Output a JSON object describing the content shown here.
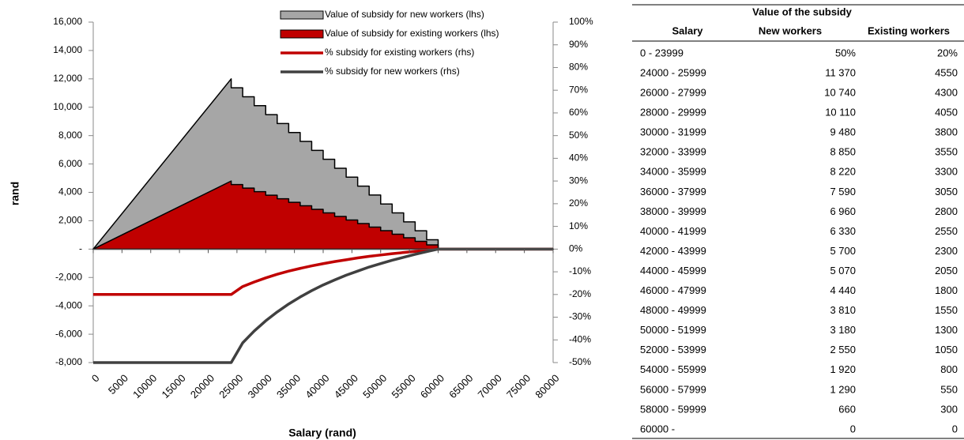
{
  "chart_data": {
    "type": "combo",
    "x_label": "Salary (rand)",
    "y_label": "rand",
    "x": [
      0,
      24000,
      24000,
      26000,
      26000,
      28000,
      28000,
      30000,
      30000,
      32000,
      32000,
      34000,
      34000,
      36000,
      36000,
      38000,
      38000,
      40000,
      40000,
      42000,
      42000,
      44000,
      44000,
      46000,
      46000,
      48000,
      48000,
      50000,
      50000,
      52000,
      52000,
      54000,
      54000,
      56000,
      56000,
      58000,
      58000,
      60000,
      60000,
      80000
    ],
    "xlim": [
      0,
      80000
    ],
    "xticks": [
      0,
      5000,
      10000,
      15000,
      20000,
      25000,
      30000,
      35000,
      40000,
      45000,
      50000,
      55000,
      60000,
      65000,
      70000,
      75000,
      80000
    ],
    "ylim": [
      -8000,
      16000
    ],
    "yticks": [
      {
        "value": 16000,
        "label": "16,000"
      },
      {
        "value": 14000,
        "label": "14,000"
      },
      {
        "value": 12000,
        "label": "12,000"
      },
      {
        "value": 10000,
        "label": "10,000"
      },
      {
        "value": 8000,
        "label": "8,000"
      },
      {
        "value": 6000,
        "label": "6,000"
      },
      {
        "value": 4000,
        "label": "4,000"
      },
      {
        "value": 2000,
        "label": "2,000"
      },
      {
        "value": 0,
        "label": "-"
      },
      {
        "value": -2000,
        "label": "-2,000"
      },
      {
        "value": -4000,
        "label": "-4,000"
      },
      {
        "value": -6000,
        "label": "-6,000"
      },
      {
        "value": -8000,
        "label": "-8,000"
      }
    ],
    "y2lim": [
      -50,
      100
    ],
    "y2ticks": [
      {
        "value": 100,
        "label": "100%"
      },
      {
        "value": 90,
        "label": "90%"
      },
      {
        "value": 80,
        "label": "80%"
      },
      {
        "value": 70,
        "label": "70%"
      },
      {
        "value": 60,
        "label": "60%"
      },
      {
        "value": 50,
        "label": "50%"
      },
      {
        "value": 40,
        "label": "40%"
      },
      {
        "value": 30,
        "label": "30%"
      },
      {
        "value": 20,
        "label": "20%"
      },
      {
        "value": 10,
        "label": "10%"
      },
      {
        "value": 0,
        "label": "0%"
      },
      {
        "value": -10,
        "label": "-10%"
      },
      {
        "value": -20,
        "label": "-20%"
      },
      {
        "value": -30,
        "label": "-30%"
      },
      {
        "value": -40,
        "label": "-40%"
      },
      {
        "value": -50,
        "label": "-50%"
      }
    ],
    "series": [
      {
        "name": "Value of subsidy for new workers (lhs)",
        "type": "area",
        "color": "#a6a6a6",
        "values": [
          0,
          12000,
          11370,
          11370,
          10740,
          10740,
          10110,
          10110,
          9480,
          9480,
          8850,
          8850,
          8220,
          8220,
          7590,
          7590,
          6960,
          6960,
          6330,
          6330,
          5700,
          5700,
          5070,
          5070,
          4440,
          4440,
          3810,
          3810,
          3180,
          3180,
          2550,
          2550,
          1920,
          1920,
          1290,
          1290,
          660,
          660,
          0,
          0
        ]
      },
      {
        "name": "Value of subsidy for existing workers (lhs)",
        "type": "area",
        "color": "#c00000",
        "values": [
          0,
          4800,
          4550,
          4550,
          4300,
          4300,
          4050,
          4050,
          3800,
          3800,
          3550,
          3550,
          3300,
          3300,
          3050,
          3050,
          2800,
          2800,
          2550,
          2550,
          2300,
          2300,
          2050,
          2050,
          1800,
          1800,
          1550,
          1550,
          1300,
          1300,
          1050,
          1050,
          800,
          800,
          550,
          550,
          300,
          300,
          0,
          0
        ]
      },
      {
        "name": "% subsidy for existing workers (rhs)",
        "type": "line",
        "axis": "y2",
        "color": "#c00000",
        "x": [
          0,
          24000,
          26000,
          28000,
          30000,
          32000,
          34000,
          36000,
          38000,
          40000,
          42000,
          44000,
          46000,
          48000,
          50000,
          52000,
          54000,
          56000,
          58000,
          60000,
          80000
        ],
        "values": [
          -20,
          -20,
          -16.5,
          -14.5,
          -12.7,
          -11.1,
          -9.7,
          -8.5,
          -7.4,
          -6.4,
          -5.5,
          -4.7,
          -3.9,
          -3.2,
          -2.6,
          -2.0,
          -1.5,
          -1.0,
          -0.5,
          0,
          0
        ]
      },
      {
        "name": "% subsidy for new workers (rhs)",
        "type": "line",
        "axis": "y2",
        "color": "#404040",
        "x": [
          0,
          24000,
          26000,
          28000,
          30000,
          32000,
          34000,
          36000,
          38000,
          40000,
          42000,
          44000,
          46000,
          48000,
          50000,
          52000,
          54000,
          56000,
          58000,
          60000,
          80000
        ],
        "values": [
          -50,
          -50,
          -41.3,
          -36.1,
          -31.6,
          -27.7,
          -24.2,
          -21.1,
          -18.3,
          -15.8,
          -13.6,
          -11.5,
          -9.7,
          -7.9,
          -6.4,
          -4.9,
          -3.6,
          -2.3,
          -1.1,
          0,
          0
        ]
      }
    ]
  },
  "table": {
    "group_header": "Value of the subsidy",
    "columns": [
      "Salary",
      "New workers",
      "Existing workers"
    ],
    "rows": [
      [
        "0 - 23999",
        "50%",
        "20%"
      ],
      [
        "24000 - 25999",
        "11 370",
        "4550"
      ],
      [
        "26000 - 27999",
        "10 740",
        "4300"
      ],
      [
        "28000 - 29999",
        "10 110",
        "4050"
      ],
      [
        "30000 - 31999",
        "9 480",
        "3800"
      ],
      [
        "32000 - 33999",
        "8 850",
        "3550"
      ],
      [
        "34000 - 35999",
        "8 220",
        "3300"
      ],
      [
        "36000 - 37999",
        "7 590",
        "3050"
      ],
      [
        "38000 - 39999",
        "6 960",
        "2800"
      ],
      [
        "40000 - 41999",
        "6 330",
        "2550"
      ],
      [
        "42000 - 43999",
        "5 700",
        "2300"
      ],
      [
        "44000 - 45999",
        "5 070",
        "2050"
      ],
      [
        "46000 - 47999",
        "4 440",
        "1800"
      ],
      [
        "48000 - 49999",
        "3 810",
        "1550"
      ],
      [
        "50000 - 51999",
        "3 180",
        "1300"
      ],
      [
        "52000 - 53999",
        "2 550",
        "1050"
      ],
      [
        "54000 - 55999",
        "1 920",
        "800"
      ],
      [
        "56000 - 57999",
        "1 290",
        "550"
      ],
      [
        "58000 - 59999",
        "660",
        "300"
      ],
      [
        "60000 -",
        "0",
        "0"
      ]
    ]
  }
}
